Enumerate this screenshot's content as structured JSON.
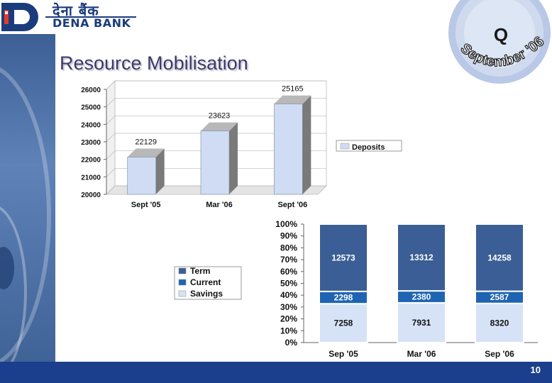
{
  "header": {
    "brand_hindi": "देना बैंक",
    "brand_name": "DENA BANK",
    "badge_letter": "Q",
    "badge_text": "September '06"
  },
  "slide": {
    "title": "Resource Mobilisation",
    "page_number": "10"
  },
  "colors": {
    "footer": "#1b3f8c",
    "bar_face": "#cfdcf3",
    "term": "#3a5e95",
    "current": "#1f64b2",
    "savings": "#d6e3f7"
  },
  "chart_data": [
    {
      "type": "bar",
      "categories": [
        "Sept '05",
        "Mar '06",
        "Sept '06"
      ],
      "series": [
        {
          "name": "Deposits",
          "values": [
            22129,
            23623,
            25165
          ]
        }
      ],
      "data_labels": [
        "22129",
        "23623",
        "25165"
      ],
      "ylim": [
        20000,
        26000
      ],
      "yticks": [
        "20000",
        "21000",
        "22000",
        "23000",
        "24000",
        "25000",
        "26000"
      ],
      "legend": "right",
      "grid": true
    },
    {
      "type": "bar",
      "stacked": "percent",
      "categories": [
        "Sep '05",
        "Mar '06",
        "Sep '06"
      ],
      "series": [
        {
          "name": "Savings",
          "values": [
            7258,
            7931,
            8320
          ]
        },
        {
          "name": "Current",
          "values": [
            2298,
            2380,
            2587
          ]
        },
        {
          "name": "Term",
          "values": [
            12573,
            13312,
            14258
          ]
        }
      ],
      "legend_order": [
        "Term",
        "Current",
        "Savings"
      ],
      "ylim": [
        0,
        100
      ],
      "yticks": [
        "0%",
        "10%",
        "20%",
        "30%",
        "40%",
        "50%",
        "60%",
        "70%",
        "80%",
        "90%",
        "100%"
      ],
      "legend": "left"
    }
  ]
}
